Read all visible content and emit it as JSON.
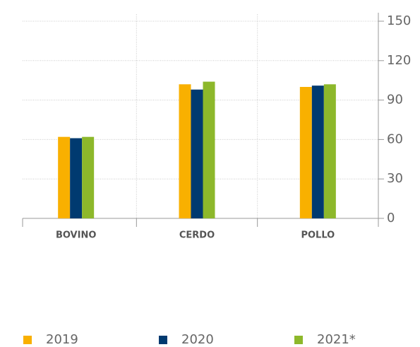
{
  "chart_data": {
    "type": "bar",
    "categories": [
      "BOVINO",
      "CERDO",
      "POLLO"
    ],
    "series": [
      {
        "name": "2019",
        "color": "#f9b000",
        "values": [
          62,
          102,
          100
        ]
      },
      {
        "name": "2020",
        "color": "#003a70",
        "values": [
          61,
          98,
          101
        ]
      },
      {
        "name": "2021*",
        "color": "#8db82b",
        "values": [
          62,
          104,
          102
        ]
      }
    ],
    "ylim": [
      0,
      150
    ],
    "yticks": [
      0,
      30,
      60,
      90,
      120,
      150
    ],
    "grid": true,
    "legend": "bottom"
  }
}
